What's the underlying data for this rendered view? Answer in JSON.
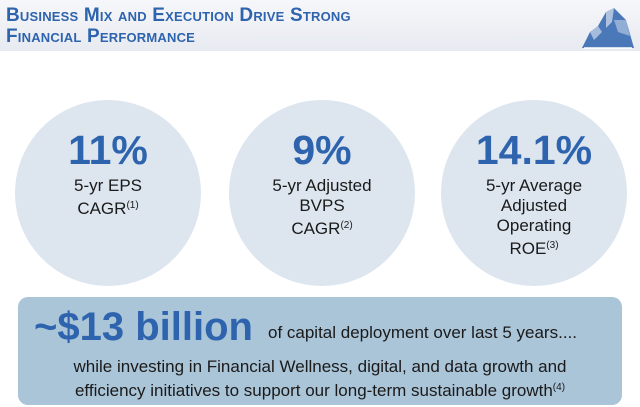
{
  "header": {
    "title_line1": "Business Mix and Execution Drive Strong",
    "title_line2": "Financial Performance"
  },
  "metrics": [
    {
      "value": "11%",
      "label_lines": [
        "5-yr EPS",
        "CAGR"
      ],
      "footnote": "(1)"
    },
    {
      "value": "9%",
      "label_lines": [
        "5-yr Adjusted",
        "BVPS",
        "CAGR"
      ],
      "footnote": "(2)"
    },
    {
      "value": "14.1%",
      "label_lines": [
        "5-yr Average",
        "Adjusted",
        "Operating",
        "ROE"
      ],
      "footnote": "(3)"
    }
  ],
  "banner": {
    "amount": "~$13 billion",
    "capital_text": "of capital deployment over last 5 years....",
    "line1": "while investing in Financial Wellness, digital, and data growth and",
    "line2": "efficiency initiatives to support our long-term sustainable growth",
    "footnote": "(4)"
  },
  "colors": {
    "accent": "#2e63ad",
    "circle_fill": "#dde6ef",
    "banner_fill": "#aac4d8"
  },
  "icons": {
    "logo": "rock-of-gibraltar-logo-icon"
  }
}
